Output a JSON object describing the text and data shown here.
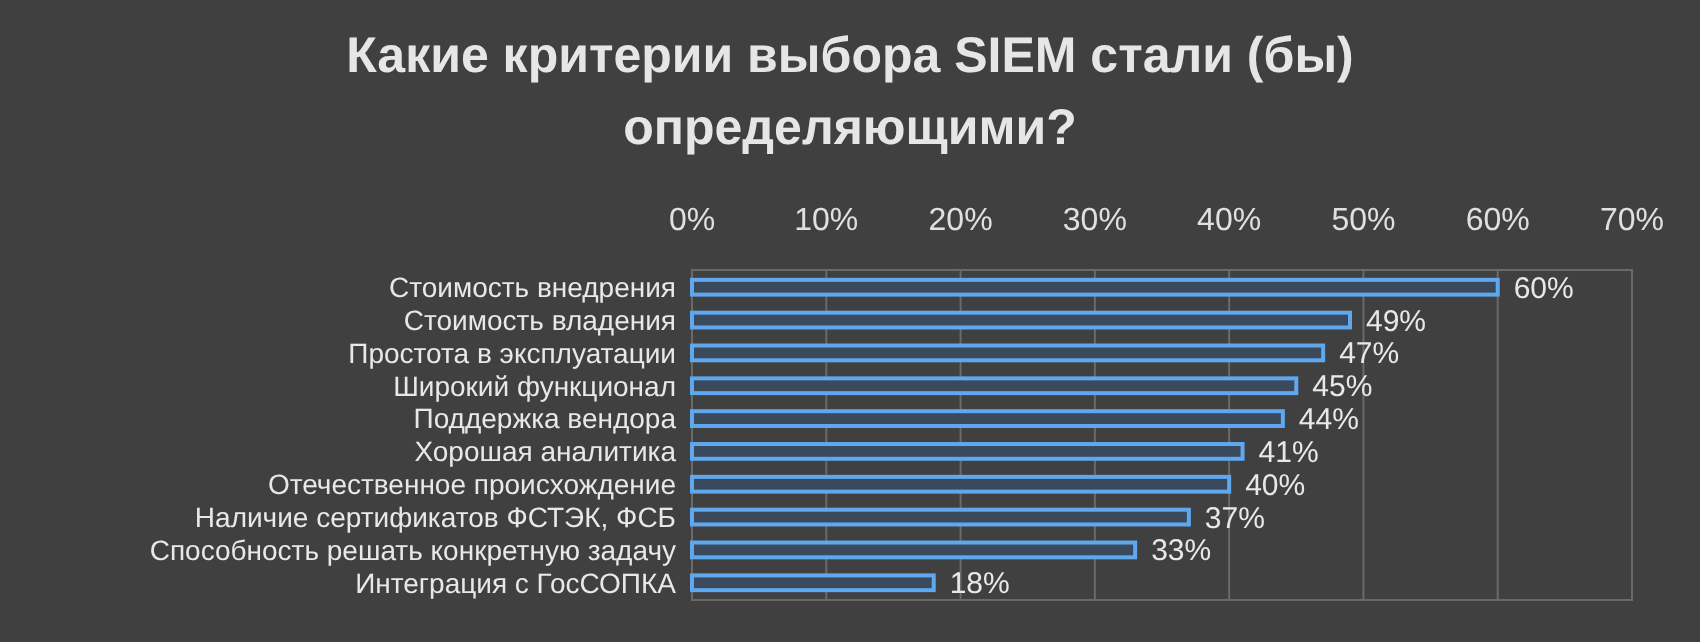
{
  "chart_data": {
    "type": "bar",
    "orientation": "horizontal",
    "title": "Какие критерии выбора SIEM стали (бы) определяющими?",
    "categories": [
      "Стоимость внедрения",
      "Стоимость владения",
      "Простота в эксплуатации",
      "Широкий функционал",
      "Поддержка вендора",
      "Хорошая аналитика",
      "Отечественное происхождение",
      "Наличие сертификатов ФСТЭК, ФСБ",
      "Способность решать конкретную задачу",
      "Интеграция с ГосСОПКА"
    ],
    "values": [
      60,
      49,
      47,
      45,
      44,
      41,
      40,
      37,
      33,
      18
    ],
    "value_labels": [
      "60%",
      "49%",
      "47%",
      "45%",
      "44%",
      "41%",
      "40%",
      "37%",
      "33%",
      "18%"
    ],
    "color": "#5fa8f0",
    "xlim": [
      0,
      70
    ],
    "xticks": [
      {
        "value": 0,
        "label": "0%"
      },
      {
        "value": 10,
        "label": "10%"
      },
      {
        "value": 20,
        "label": "20%"
      },
      {
        "value": 30,
        "label": "30%"
      },
      {
        "value": 40,
        "label": "40%"
      },
      {
        "value": 50,
        "label": "50%"
      },
      {
        "value": 60,
        "label": "60%"
      },
      {
        "value": 70,
        "label": "70%"
      }
    ],
    "grid": "x"
  }
}
